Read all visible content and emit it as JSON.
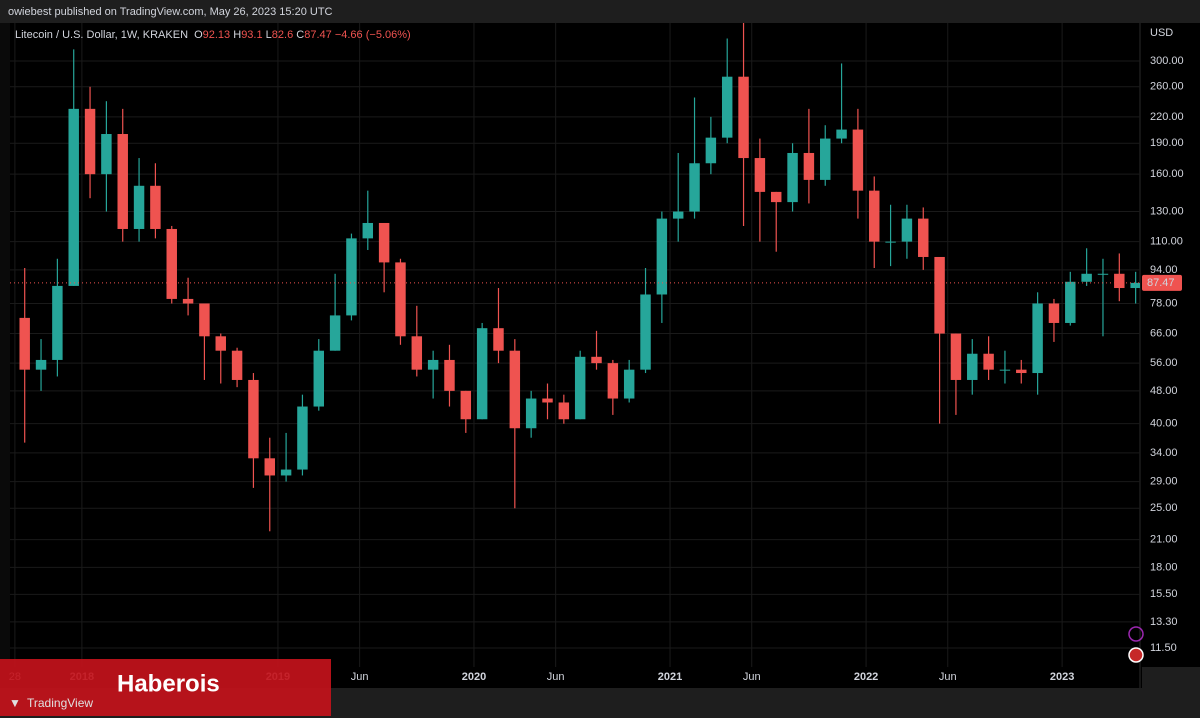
{
  "header": {
    "published": "owiebest published on TradingView.com, May 26, 2023 15:20 UTC"
  },
  "watermark": {
    "text": "Haberois"
  },
  "footer": {
    "logo": "TradingView"
  },
  "chart_data": {
    "type": "candlestick",
    "symbol": "Litecoin / U.S. Dollar, 1W, KRAKEN",
    "legend": {
      "o_label": "O",
      "open": 92.13,
      "h_label": "H",
      "high": 93.1,
      "l_label": "L",
      "low": 82.6,
      "c_label": "C",
      "close": 87.47,
      "change": "−4.66",
      "change_pct": "(−5.06%)"
    },
    "currency": "USD",
    "last_price": 87.47,
    "log_scale": true,
    "grid": true,
    "up_color": "#26a69a",
    "down_color": "#ef5350",
    "x": [
      "2017-09",
      "2017-10",
      "2017-11",
      "2017-12",
      "2018-01",
      "2018-02",
      "2018-03",
      "2018-04",
      "2018-05",
      "2018-06",
      "2018-07",
      "2018-08",
      "2018-09",
      "2018-10",
      "2018-11",
      "2018-12",
      "2019-01",
      "2019-02",
      "2019-03",
      "2019-04",
      "2019-05",
      "2019-06",
      "2019-07",
      "2019-08",
      "2019-09",
      "2019-10",
      "2019-11",
      "2019-12",
      "2020-01",
      "2020-02",
      "2020-03",
      "2020-04",
      "2020-05",
      "2020-06",
      "2020-07",
      "2020-08",
      "2020-09",
      "2020-10",
      "2020-11",
      "2020-12",
      "2021-01",
      "2021-02",
      "2021-03",
      "2021-04",
      "2021-05",
      "2021-06",
      "2021-07",
      "2021-08",
      "2021-09",
      "2021-10",
      "2021-11",
      "2021-12",
      "2022-01",
      "2022-02",
      "2022-03",
      "2022-04",
      "2022-05",
      "2022-06",
      "2022-07",
      "2022-08",
      "2022-09",
      "2022-10",
      "2022-11",
      "2022-12",
      "2023-01",
      "2023-02",
      "2023-03",
      "2023-04",
      "2023-05"
    ],
    "open": [
      72,
      54,
      57,
      86,
      230,
      160,
      200,
      118,
      150,
      118,
      80,
      78,
      65,
      60,
      51,
      33,
      30,
      31,
      44,
      60,
      73,
      112,
      122,
      98,
      65,
      54,
      57,
      48,
      41,
      68,
      60,
      39,
      46,
      45,
      41,
      58,
      56,
      46,
      54,
      82,
      125,
      130,
      170,
      196,
      275,
      175,
      145,
      137,
      180,
      155,
      195,
      205,
      146,
      110,
      110,
      125,
      101,
      66,
      51,
      59,
      54,
      54,
      53,
      78,
      70,
      88,
      92,
      92,
      85
    ],
    "high": [
      95,
      64,
      100,
      320,
      260,
      240,
      230,
      175,
      170,
      120,
      90,
      78,
      66,
      61,
      53,
      37,
      38,
      47,
      64,
      92,
      115,
      146,
      122,
      100,
      77,
      60,
      62,
      48,
      70,
      85,
      64,
      48,
      50,
      47,
      60,
      67,
      57,
      57,
      95,
      130,
      180,
      245,
      220,
      340,
      413,
      195,
      145,
      190,
      230,
      210,
      296,
      230,
      158,
      135,
      135,
      133,
      101,
      66,
      64,
      65,
      60,
      57,
      83,
      80,
      93,
      106,
      100,
      103,
      93
    ],
    "low": [
      36,
      48,
      52,
      86,
      140,
      130,
      110,
      110,
      112,
      78,
      73,
      51,
      50,
      49,
      28,
      22,
      29,
      30,
      43,
      60,
      71,
      105,
      83,
      62,
      52,
      46,
      44,
      38,
      41,
      56,
      25,
      37,
      41,
      40,
      41,
      54,
      42,
      45,
      53,
      70,
      110,
      125,
      160,
      190,
      120,
      110,
      104,
      130,
      136,
      150,
      190,
      125,
      95,
      96,
      100,
      94,
      40,
      42,
      47,
      51,
      50,
      50,
      47,
      63,
      69,
      86,
      65,
      79,
      78
    ],
    "close": [
      54,
      57,
      86,
      230,
      160,
      200,
      118,
      150,
      118,
      80,
      78,
      65,
      60,
      51,
      33,
      30,
      31,
      44,
      60,
      73,
      112,
      122,
      98,
      65,
      54,
      57,
      48,
      41,
      68,
      60,
      39,
      46,
      45,
      41,
      58,
      56,
      46,
      54,
      82,
      125,
      130,
      170,
      196,
      275,
      175,
      145,
      137,
      180,
      155,
      195,
      205,
      146,
      110,
      110,
      125,
      101,
      66,
      51,
      59,
      54,
      54,
      53,
      78,
      70,
      88,
      92,
      92,
      85,
      87.47
    ],
    "xlim": [
      "2017-08-19",
      "2023-05-24"
    ],
    "xticks": [
      {
        "value": "2017-08-28",
        "label": "28"
      },
      {
        "value": "2018-01",
        "label": "2018"
      },
      {
        "value": "2019-01",
        "label": "2019"
      },
      {
        "value": "2019-06",
        "label": "Jun"
      },
      {
        "value": "2020-01",
        "label": "2020"
      },
      {
        "value": "2020-06",
        "label": "Jun"
      },
      {
        "value": "2021-01",
        "label": "2021"
      },
      {
        "value": "2021-06",
        "label": "Jun"
      },
      {
        "value": "2022-01",
        "label": "2022"
      },
      {
        "value": "2022-06",
        "label": "Jun"
      },
      {
        "value": "2023-01",
        "label": "2023"
      }
    ],
    "ylim": [
      10.35,
      370.6
    ],
    "yticks": [
      {
        "value": 300,
        "label": "300.00"
      },
      {
        "value": 260,
        "label": "260.00"
      },
      {
        "value": 220,
        "label": "220.00"
      },
      {
        "value": 190,
        "label": "190.00"
      },
      {
        "value": 160,
        "label": "160.00"
      },
      {
        "value": 130,
        "label": "130.00"
      },
      {
        "value": 110,
        "label": "110.00"
      },
      {
        "value": 94,
        "label": "94.00"
      },
      {
        "value": 78,
        "label": "78.00"
      },
      {
        "value": 66,
        "label": "66.00"
      },
      {
        "value": 56,
        "label": "56.00"
      },
      {
        "value": 48,
        "label": "48.00"
      },
      {
        "value": 40,
        "label": "40.00"
      },
      {
        "value": 34,
        "label": "34.00"
      },
      {
        "value": 29,
        "label": "29.00"
      },
      {
        "value": 25,
        "label": "25.00"
      },
      {
        "value": 21,
        "label": "21.00"
      },
      {
        "value": 18,
        "label": "18.00"
      },
      {
        "value": 15.5,
        "label": "15.50"
      },
      {
        "value": 13.3,
        "label": "13.30"
      },
      {
        "value": 11.5,
        "label": "11.50"
      }
    ]
  }
}
